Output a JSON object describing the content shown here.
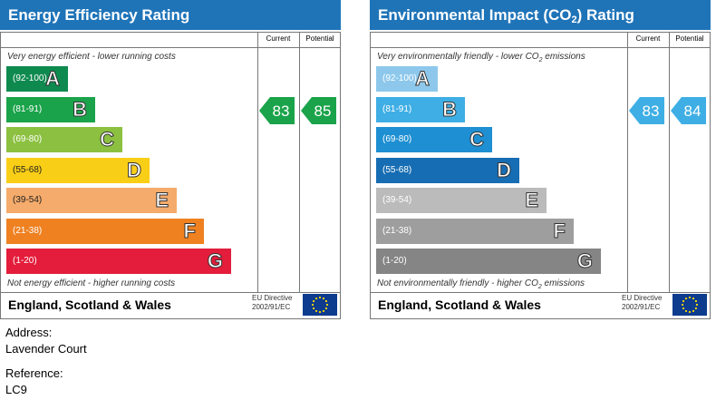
{
  "chart_data": [
    {
      "type": "bar",
      "title": "Energy Efficiency Rating",
      "columns": [
        "Current",
        "Potential"
      ],
      "top_note": "Very energy efficient - lower running costs",
      "bottom_note": "Not energy efficient - higher running costs",
      "bands": [
        {
          "range": "(92-100)",
          "letter": "A",
          "color": "#0e8a4f"
        },
        {
          "range": "(81-91)",
          "letter": "B",
          "color": "#1aa34a"
        },
        {
          "range": "(69-80)",
          "letter": "C",
          "color": "#8cc041"
        },
        {
          "range": "(55-68)",
          "letter": "D",
          "color": "#f9ce17"
        },
        {
          "range": "(39-54)",
          "letter": "E",
          "color": "#f5ab6b"
        },
        {
          "range": "(21-38)",
          "letter": "F",
          "color": "#ef8121"
        },
        {
          "range": "(1-20)",
          "letter": "G",
          "color": "#e31d3b"
        }
      ],
      "current": 83,
      "potential": 85,
      "current_color": "#1aa34a",
      "potential_color": "#1aa34a",
      "footer": "England, Scotland & Wales",
      "directive_line1": "EU Directive",
      "directive_line2": "2002/91/EC"
    },
    {
      "type": "bar",
      "title": "Environmental Impact (CO",
      "title_sub": "2",
      "title_end": ") Rating",
      "columns": [
        "Current",
        "Potential"
      ],
      "top_note": "Very environmentally friendly - lower CO",
      "top_note_sub": "2",
      "top_note_end": " emissions",
      "bottom_note": "Not environmentally friendly - higher CO",
      "bottom_note_sub": "2",
      "bottom_note_end": " emissions",
      "bands": [
        {
          "range": "(92-100)",
          "letter": "A",
          "color": "#8dc8ec"
        },
        {
          "range": "(81-91)",
          "letter": "B",
          "color": "#3eaee5"
        },
        {
          "range": "(69-80)",
          "letter": "C",
          "color": "#1e8fd2"
        },
        {
          "range": "(55-68)",
          "letter": "D",
          "color": "#176db3"
        },
        {
          "range": "(39-54)",
          "letter": "E",
          "color": "#bbbbbb"
        },
        {
          "range": "(21-38)",
          "letter": "F",
          "color": "#9e9e9e"
        },
        {
          "range": "(1-20)",
          "letter": "G",
          "color": "#858585"
        }
      ],
      "current": 83,
      "potential": 84,
      "current_color": "#3eaee5",
      "potential_color": "#3eaee5",
      "footer": "England, Scotland & Wales",
      "directive_line1": "EU Directive",
      "directive_line2": "2002/91/EC"
    }
  ],
  "address": {
    "label": "Address:",
    "value": "Lavender Court"
  },
  "reference": {
    "label": "Reference:",
    "value": "LC9"
  }
}
